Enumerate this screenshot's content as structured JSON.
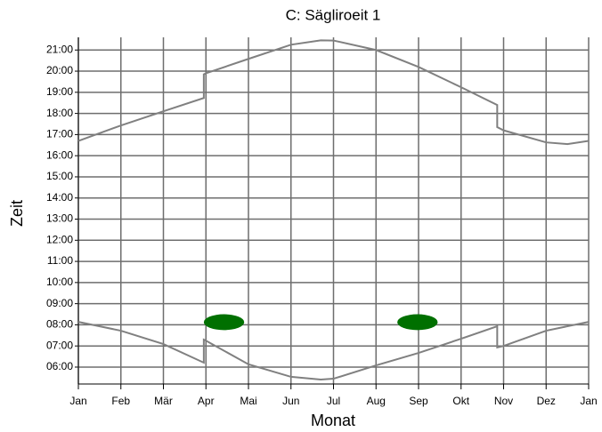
{
  "chart_data": {
    "type": "line",
    "title": "C: Sägliroeit 1",
    "xlabel": "Monat",
    "ylabel": "Zeit",
    "xlim": [
      0,
      12
    ],
    "xticks": [
      {
        "value": 0,
        "label": "Jan"
      },
      {
        "value": 1,
        "label": "Feb"
      },
      {
        "value": 2,
        "label": "Mär"
      },
      {
        "value": 3,
        "label": "Apr"
      },
      {
        "value": 4,
        "label": "Mai"
      },
      {
        "value": 5,
        "label": "Jun"
      },
      {
        "value": 6,
        "label": "Jul"
      },
      {
        "value": 7,
        "label": "Aug"
      },
      {
        "value": 8,
        "label": "Sep"
      },
      {
        "value": 9,
        "label": "Okt"
      },
      {
        "value": 10,
        "label": "Nov"
      },
      {
        "value": 11,
        "label": "Dez"
      },
      {
        "value": 12,
        "label": "Jan"
      }
    ],
    "ylim": [
      5.2,
      21.6
    ],
    "yticks": [
      {
        "value": 6,
        "label": "06:00"
      },
      {
        "value": 7,
        "label": "07:00"
      },
      {
        "value": 8,
        "label": "08:00"
      },
      {
        "value": 9,
        "label": "09:00"
      },
      {
        "value": 10,
        "label": "10:00"
      },
      {
        "value": 11,
        "label": "11:00"
      },
      {
        "value": 12,
        "label": "12:00"
      },
      {
        "value": 13,
        "label": "13:00"
      },
      {
        "value": 14,
        "label": "14:00"
      },
      {
        "value": 15,
        "label": "15:00"
      },
      {
        "value": 16,
        "label": "16:00"
      },
      {
        "value": 17,
        "label": "17:00"
      },
      {
        "value": 18,
        "label": "18:00"
      },
      {
        "value": 19,
        "label": "19:00"
      },
      {
        "value": 20,
        "label": "20:00"
      },
      {
        "value": 21,
        "label": "21:00"
      }
    ],
    "grid": true,
    "series": [
      {
        "color": "#808080",
        "x": [
          0,
          1,
          2,
          2.95,
          2.95,
          3,
          4,
          5,
          5.7,
          6,
          7,
          8,
          9,
          9.85,
          9.85,
          10,
          11,
          11.5,
          12
        ],
        "values": [
          16.7,
          17.43,
          18.1,
          18.73,
          19.85,
          19.9,
          20.58,
          21.25,
          21.46,
          21.45,
          21.0,
          20.2,
          19.24,
          18.4,
          17.35,
          17.2,
          16.63,
          16.55,
          16.7
        ]
      },
      {
        "color": "#808080",
        "x": [
          0,
          1,
          2,
          2.95,
          2.95,
          3,
          4,
          5,
          5.7,
          6,
          7,
          8,
          9,
          9.85,
          9.85,
          10,
          11,
          12
        ],
        "values": [
          8.14,
          7.72,
          7.09,
          6.21,
          7.3,
          7.25,
          6.13,
          5.54,
          5.41,
          5.45,
          6.08,
          6.67,
          7.34,
          7.93,
          6.93,
          7.0,
          7.72,
          8.14
        ]
      }
    ],
    "regions": [
      {
        "color": "#007000",
        "x": [
          2.95,
          3.9
        ],
        "y": [
          7.75,
          8.5
        ]
      },
      {
        "color": "#007000",
        "x": [
          7.5,
          8.45
        ],
        "y": [
          7.75,
          8.5
        ]
      }
    ]
  }
}
